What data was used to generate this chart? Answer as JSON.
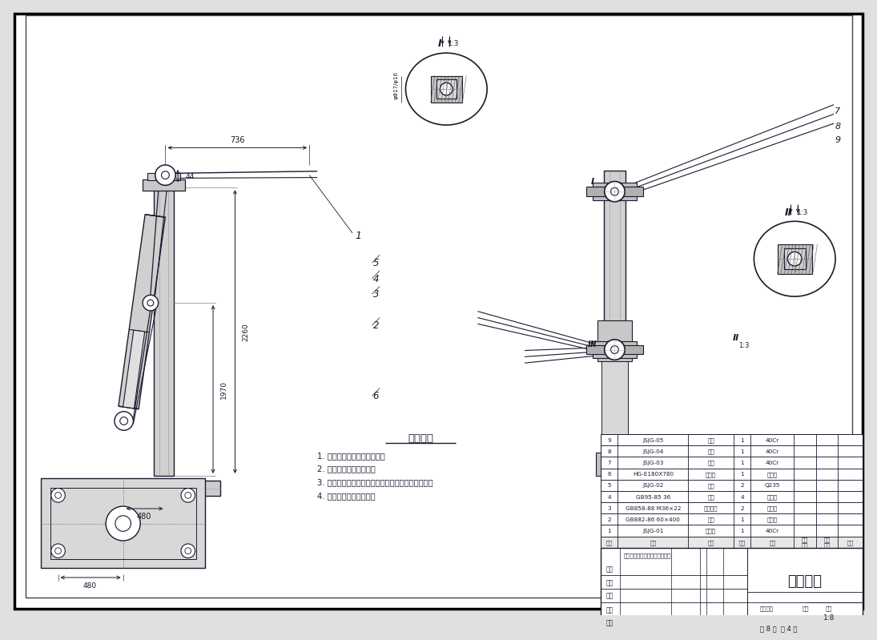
{
  "title": "举升机构",
  "scale": "1:8",
  "sheet": "共 8 张  第 4 张",
  "bg_color": "#e0e0e0",
  "line_color": "#1a1a2e",
  "tech_title": "技术要求",
  "tech_items": [
    "1. 液压缸与钢轴之间隙配合；",
    "2. 拉杆与销之间隙配合；",
    "3. 拉杆与三角臂之间由套筒相接，并保证能够运动；",
    "4. 表面涂上一层防锈漆。"
  ],
  "bom_rows": [
    [
      "9",
      "JSJG-05",
      "套管",
      "1",
      "40Cr"
    ],
    [
      "8",
      "JSJG-04",
      "车架",
      "1",
      "40Cr"
    ],
    [
      "7",
      "JSJG-03",
      "销套",
      "1",
      "40Cr"
    ],
    [
      "6",
      "HG-E180X780",
      "液压缸",
      "1",
      "标准件"
    ],
    [
      "5",
      "JSJG-02",
      "拉杆",
      "2",
      "Q235"
    ],
    [
      "4",
      "GB95-85 36",
      "垫圈",
      "4",
      "标准件"
    ],
    [
      "3",
      "GB858-88 M36×22",
      "紧定螺栓",
      "2",
      "标准件"
    ],
    [
      "2",
      "GB882-86 60×400",
      "销轴",
      "1",
      "标准件"
    ],
    [
      "1",
      "JSJG-01",
      "三角臂",
      "1",
      "40Cr"
    ]
  ],
  "note_scale_label": "1:8",
  "school_note": "重庆大学机械系毕业生，日，月",
  "designer": "设计",
  "checker": "审核",
  "unit": "单位",
  "process": "工艺",
  "draw": "描图",
  "check_mark": "审查标记",
  "weight": "重量",
  "ratio": "比例",
  "seq_header": "序号",
  "code_header": "代号",
  "name_header": "名称",
  "qty_header": "数量",
  "mat_header": "材料",
  "unit_wt": "单件\n重量",
  "total_wt": "合计\n重量",
  "remark": "备注"
}
